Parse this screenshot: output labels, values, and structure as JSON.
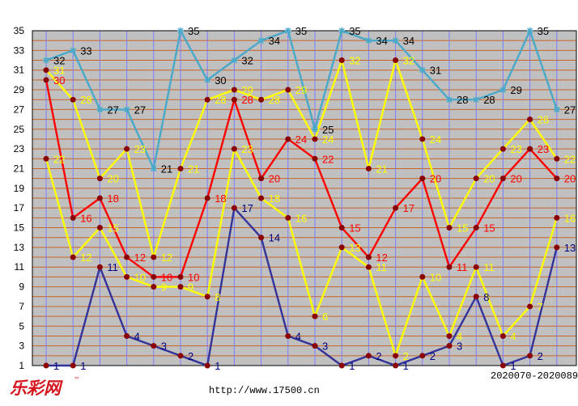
{
  "chart_data": {
    "type": "line",
    "ylim": [
      1,
      35
    ],
    "yticks": [
      1,
      3,
      5,
      7,
      9,
      11,
      13,
      15,
      17,
      19,
      21,
      23,
      25,
      27,
      29,
      31,
      33,
      35
    ],
    "series": [
      {
        "id": "s1",
        "color": "#4aa8c8",
        "marker": "star",
        "label_color": "#000000",
        "values": [
          32,
          33,
          27,
          27,
          21,
          35,
          30,
          32,
          34,
          35,
          25,
          35,
          34,
          34,
          31,
          28,
          28,
          29,
          35,
          27
        ]
      },
      {
        "id": "s2",
        "color": "#ffff00",
        "marker": "dot",
        "label_color": "#ffff00",
        "values": [
          31,
          28,
          20,
          23,
          12,
          21,
          28,
          29,
          28,
          29,
          24,
          32,
          21,
          32,
          24,
          15,
          20,
          23,
          26,
          22
        ]
      },
      {
        "id": "s3",
        "color": "#ff0000",
        "marker": "dot",
        "label_color": "#ff0000",
        "values": [
          30,
          16,
          18,
          12,
          10,
          10,
          18,
          28,
          20,
          24,
          22,
          15,
          12,
          17,
          20,
          11,
          15,
          20,
          23,
          20
        ]
      },
      {
        "id": "s4",
        "color": "#ffff00",
        "marker": "dot",
        "label_color": "#ffff00",
        "values": [
          22,
          12,
          15,
          10,
          9,
          9,
          8,
          23,
          18,
          16,
          6,
          13,
          11,
          2,
          10,
          4,
          11,
          4,
          7,
          16
        ]
      },
      {
        "id": "s5",
        "color": "#333399",
        "marker": "dot",
        "label_color": "#000080",
        "values": [
          1,
          1,
          11,
          4,
          3,
          2,
          1,
          17,
          14,
          4,
          3,
          1,
          2,
          1,
          2,
          3,
          8,
          1,
          2,
          13
        ]
      }
    ],
    "period_label": "2020070-2020089",
    "website": "http://www.17500.cn",
    "logo_text": "乐彩网",
    "logo_mark": "™"
  },
  "colors": {
    "plot_bg": "#c0c0c0",
    "hgrid": "#c86428",
    "vgrid": "#7b7bff",
    "marker_fill": "#8b0000"
  }
}
